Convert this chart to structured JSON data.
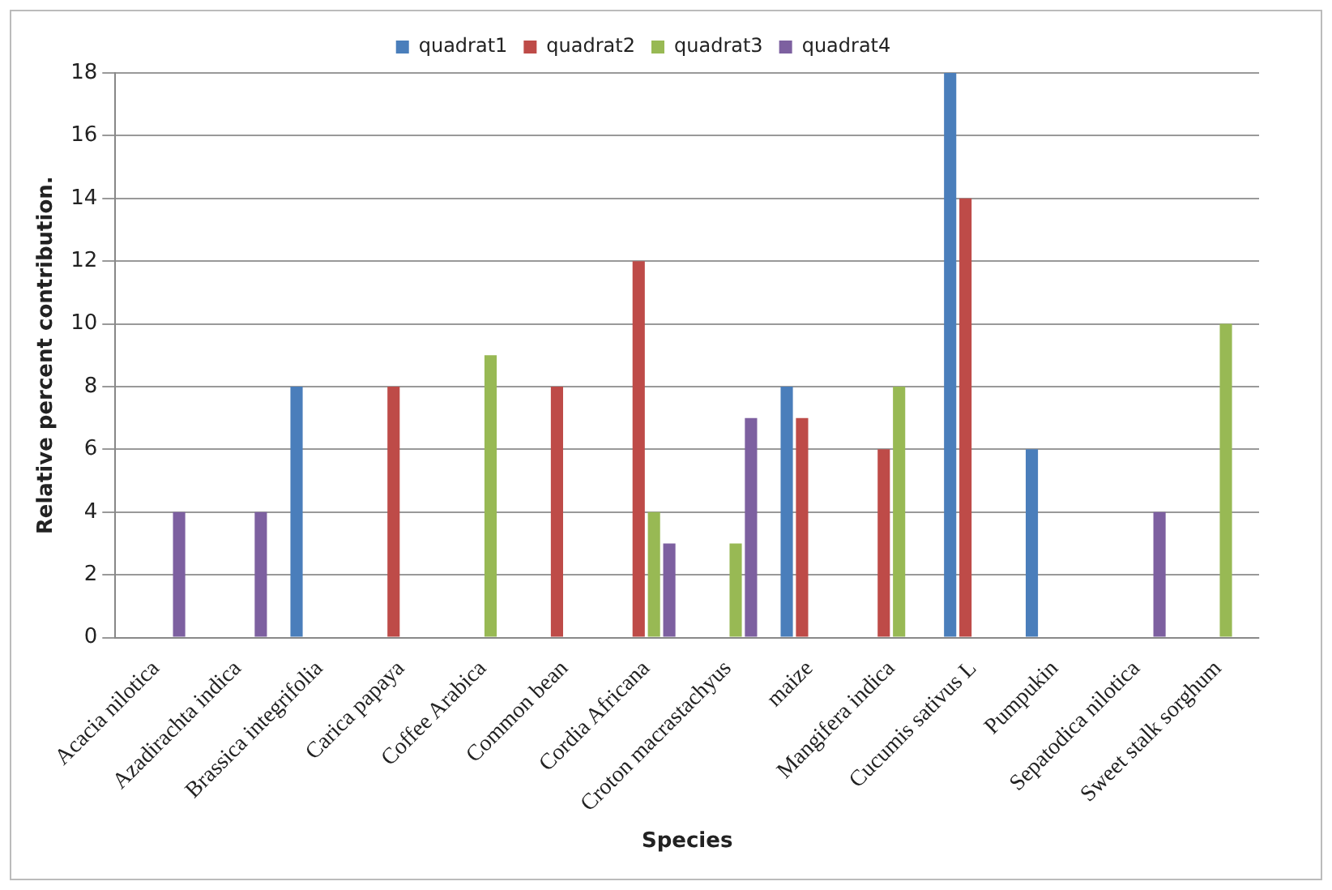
{
  "chart_data": {
    "type": "bar",
    "xlabel": "Species",
    "ylabel": "Relative percent contribution.",
    "categories": [
      "Acacia nilotica",
      "Azadirachta indica",
      "Brassica integrifolia",
      "Carica papaya",
      "Coffee Arabica",
      "Common bean",
      "Cordia Africana",
      "Croton macrastachyus",
      "maize",
      "Mangifera indica",
      "Cucumis sativus L",
      "Pumpukin",
      "Sepatodica nilotica",
      "Sweet stalk sorghum"
    ],
    "series": [
      {
        "name": "quadrat1",
        "color": "#4a7ebb",
        "values": [
          0,
          0,
          8,
          0,
          0,
          0,
          0,
          0,
          8,
          0,
          18,
          6,
          0,
          0
        ]
      },
      {
        "name": "quadrat2",
        "color": "#be4b48",
        "values": [
          0,
          0,
          0,
          8,
          0,
          8,
          12,
          0,
          7,
          6,
          14,
          0,
          0,
          0
        ]
      },
      {
        "name": "quadrat3",
        "color": "#98b954",
        "values": [
          0,
          0,
          0,
          0,
          9,
          0,
          4,
          3,
          0,
          8,
          0,
          0,
          0,
          10
        ]
      },
      {
        "name": "quadrat4",
        "color": "#7d60a0",
        "values": [
          4,
          4,
          0,
          0,
          0,
          0,
          3,
          7,
          0,
          0,
          0,
          0,
          4,
          0
        ]
      }
    ],
    "ylim": [
      0,
      18
    ],
    "yticks": [
      0,
      2,
      4,
      6,
      8,
      10,
      12,
      14,
      16,
      18
    ],
    "grid": "y",
    "legend": "top"
  }
}
